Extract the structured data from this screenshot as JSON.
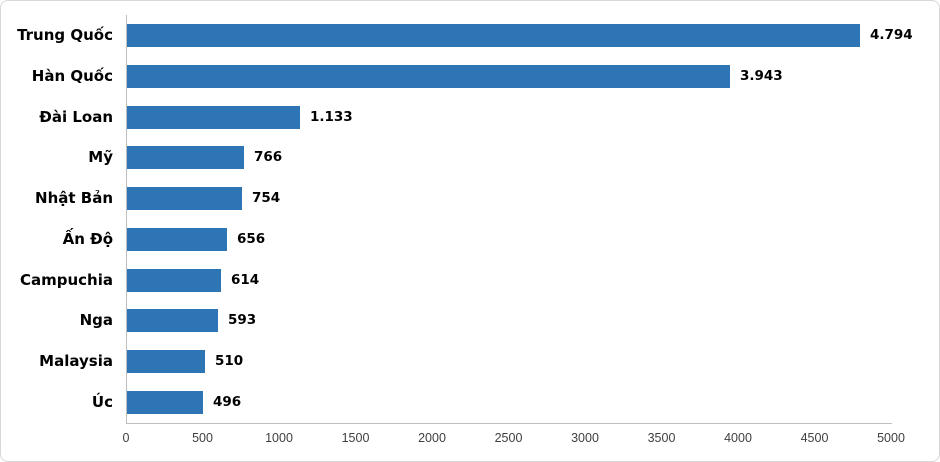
{
  "chart_data": {
    "type": "bar",
    "orientation": "horizontal",
    "title": "",
    "xlabel": "",
    "ylabel": "",
    "categories": [
      "Trung Quốc",
      "Hàn Quốc",
      "Đài Loan",
      "Mỹ",
      "Nhật Bản",
      "Ấn Độ",
      "Campuchia",
      "Nga",
      "Malaysia",
      "Úc"
    ],
    "values": [
      4794,
      3943,
      1133,
      766,
      754,
      656,
      614,
      593,
      510,
      496
    ],
    "value_labels": [
      "4.794",
      "3.943",
      "1.133",
      "766",
      "754",
      "656",
      "614",
      "593",
      "510",
      "496"
    ],
    "xlim": [
      0,
      5000
    ],
    "x_ticks": [
      0,
      500,
      1000,
      1500,
      2000,
      2500,
      3000,
      3500,
      4000,
      4500,
      5000
    ],
    "x_tick_labels": [
      "0",
      "500",
      "1000",
      "1500",
      "2000",
      "2500",
      "3000",
      "3500",
      "4000",
      "4500",
      "5000"
    ],
    "grid": false,
    "legend": false,
    "colors": {
      "bar_fill": "#2E75B6",
      "axis_line": "#BFBFBF",
      "category_label": "#000000",
      "value_label": "#000000",
      "tick_label": "#404040",
      "background": "#FFFFFF",
      "frame_border": "#D7D7D7"
    }
  }
}
